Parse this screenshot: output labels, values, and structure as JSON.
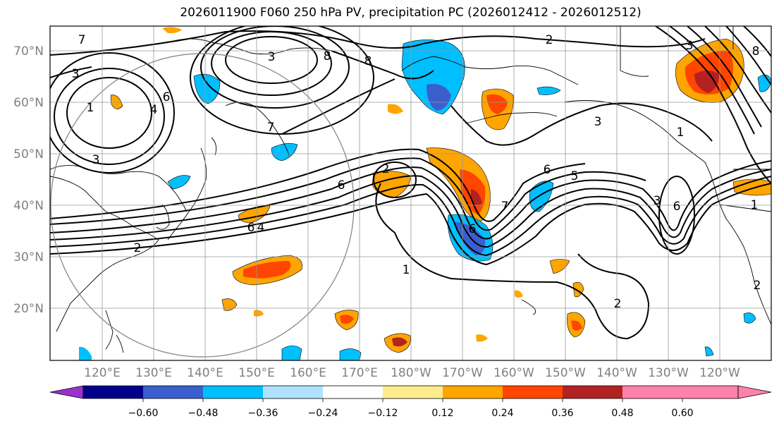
{
  "figure": {
    "title": "2026011900 F060 250 hPa PV, precipitation PC (2026012412 - 2026012512)"
  },
  "map": {
    "lat_labels": [
      "70°N",
      "60°N",
      "50°N",
      "40°N",
      "30°N",
      "20°N"
    ],
    "lon_labels": [
      "120°E",
      "130°E",
      "140°E",
      "150°E",
      "160°E",
      "170°E",
      "180°W",
      "170°W",
      "160°W",
      "150°W",
      "140°W",
      "130°W",
      "120°W"
    ],
    "pv_contour_labels": [
      "7",
      "3",
      "1",
      "3",
      "6",
      "4",
      "3",
      "2",
      "7",
      "8",
      "2",
      "8",
      "6",
      "6",
      "2",
      "1",
      "3",
      "5",
      "6",
      "7",
      "6",
      "1",
      "2",
      "3",
      "4",
      "8",
      "3",
      "6",
      "1",
      "2"
    ]
  },
  "colorbar": {
    "tick_labels": [
      "−0.60",
      "−0.48",
      "−0.36",
      "−0.24",
      "−0.12",
      "0.12",
      "0.24",
      "0.36",
      "0.48",
      "0.60"
    ],
    "colors": [
      "#9932cc",
      "#00008b",
      "#3a5fcd",
      "#00bfff",
      "#b0e2ff",
      "#ffffff",
      "#ffec8b",
      "#ffa500",
      "#ff4500",
      "#b22222",
      "#ff82ab"
    ]
  },
  "colors": {
    "pv_contour": "#000000",
    "gridline": "#999999",
    "axis_label": "#808080"
  }
}
